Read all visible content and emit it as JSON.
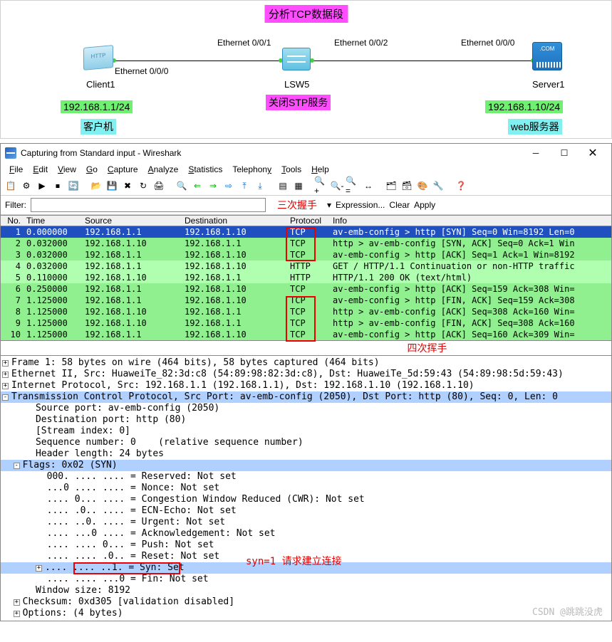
{
  "topology": {
    "title": "分析TCP数据段",
    "client": {
      "label": "Client1",
      "ip": "192.168.1.1/24",
      "role": "客户机",
      "eth": "Ethernet 0/0/0",
      "icon_text": "HTTP"
    },
    "switch": {
      "label": "LSW5",
      "note": "关闭STP服务",
      "eth_left": "Ethernet 0/0/1",
      "eth_right": "Ethernet 0/0/2"
    },
    "server": {
      "label": "Server1",
      "ip": "192.168.1.10/24",
      "role": "web服务器",
      "eth": "Ethernet 0/0/0",
      "icon_text": ".COM"
    }
  },
  "wireshark": {
    "title": "Capturing from Standard input - Wireshark",
    "menus": [
      "File",
      "Edit",
      "View",
      "Go",
      "Capture",
      "Analyze",
      "Statistics",
      "Telephony",
      "Tools",
      "Help"
    ],
    "filter_label": "Filter:",
    "filter_right": [
      "Expression...",
      "Clear",
      "Apply"
    ],
    "handshake3": "三次握手",
    "handshake4": "四次挥手",
    "columns": [
      "No.",
      "Time",
      "Source",
      "Destination",
      "Protocol",
      "Info"
    ],
    "packets": [
      {
        "no": 1,
        "time": "0.000000",
        "src": "192.168.1.1",
        "dst": "192.168.1.10",
        "proto": "TCP",
        "info": "av-emb-config > http [SYN] Seq=0 Win=8192 Len=0",
        "cls": "selected"
      },
      {
        "no": 2,
        "time": "0.032000",
        "src": "192.168.1.10",
        "dst": "192.168.1.1",
        "proto": "TCP",
        "info": "http > av-emb-config [SYN, ACK] Seq=0 Ack=1 Win",
        "cls": "tcp"
      },
      {
        "no": 3,
        "time": "0.032000",
        "src": "192.168.1.1",
        "dst": "192.168.1.10",
        "proto": "TCP",
        "info": "av-emb-config > http [ACK] Seq=1 Ack=1 Win=8192",
        "cls": "tcp"
      },
      {
        "no": 4,
        "time": "0.032000",
        "src": "192.168.1.1",
        "dst": "192.168.1.10",
        "proto": "HTTP",
        "info": "GET / HTTP/1.1 Continuation or non-HTTP traffic",
        "cls": "http"
      },
      {
        "no": 5,
        "time": "0.110000",
        "src": "192.168.1.10",
        "dst": "192.168.1.1",
        "proto": "HTTP",
        "info": "HTTP/1.1 200 OK  (text/html)",
        "cls": "http"
      },
      {
        "no": 6,
        "time": "0.250000",
        "src": "192.168.1.1",
        "dst": "192.168.1.10",
        "proto": "TCP",
        "info": "av-emb-config > http [ACK] Seq=159 Ack=308 Win=",
        "cls": "tcp"
      },
      {
        "no": 7,
        "time": "1.125000",
        "src": "192.168.1.1",
        "dst": "192.168.1.10",
        "proto": "TCP",
        "info": "av-emb-config > http [FIN, ACK] Seq=159 Ack=308",
        "cls": "tcp"
      },
      {
        "no": 8,
        "time": "1.125000",
        "src": "192.168.1.10",
        "dst": "192.168.1.1",
        "proto": "TCP",
        "info": "http > av-emb-config [ACK] Seq=308 Ack=160 Win=",
        "cls": "tcp"
      },
      {
        "no": 9,
        "time": "1.125000",
        "src": "192.168.1.10",
        "dst": "192.168.1.1",
        "proto": "TCP",
        "info": "http > av-emb-config [FIN, ACK] Seq=308 Ack=160",
        "cls": "tcp"
      },
      {
        "no": 10,
        "time": "1.125000",
        "src": "192.168.1.1",
        "dst": "192.168.1.10",
        "proto": "TCP",
        "info": "av-emb-config > http [ACK] Seq=160 Ack=309 Win=",
        "cls": "tcp"
      }
    ],
    "details": [
      {
        "t": "Frame 1: 58 bytes on wire (464 bits), 58 bytes captured (464 bits)",
        "i": 0,
        "tg": "+"
      },
      {
        "t": "Ethernet II, Src: HuaweiTe_82:3d:c8 (54:89:98:82:3d:c8), Dst: HuaweiTe_5d:59:43 (54:89:98:5d:59:43)",
        "i": 0,
        "tg": "+"
      },
      {
        "t": "Internet Protocol, Src: 192.168.1.1 (192.168.1.1), Dst: 192.168.1.10 (192.168.1.10)",
        "i": 0,
        "tg": "+"
      },
      {
        "t": "Transmission Control Protocol, Src Port: av-emb-config (2050), Dst Port: http (80), Seq: 0, Len: 0",
        "i": 0,
        "tg": "-",
        "hl": true
      },
      {
        "t": "Source port: av-emb-config (2050)",
        "i": 2
      },
      {
        "t": "Destination port: http (80)",
        "i": 2
      },
      {
        "t": "[Stream index: 0]",
        "i": 2
      },
      {
        "t": "Sequence number: 0    (relative sequence number)",
        "i": 2
      },
      {
        "t": "Header length: 24 bytes",
        "i": 2
      },
      {
        "t": "Flags: 0x02 (SYN)",
        "i": 1,
        "tg": "-",
        "hl": true
      },
      {
        "t": "000. .... .... = Reserved: Not set",
        "i": 3
      },
      {
        "t": "...0 .... .... = Nonce: Not set",
        "i": 3
      },
      {
        "t": ".... 0... .... = Congestion Window Reduced (CWR): Not set",
        "i": 3
      },
      {
        "t": ".... .0.. .... = ECN-Echo: Not set",
        "i": 3
      },
      {
        "t": ".... ..0. .... = Urgent: Not set",
        "i": 3
      },
      {
        "t": ".... ...0 .... = Acknowledgement: Not set",
        "i": 3
      },
      {
        "t": ".... .... 0... = Push: Not set",
        "i": 3
      },
      {
        "t": ".... .... .0.. = Reset: Not set",
        "i": 3
      },
      {
        "t": ".... .... ..1. = Syn: Set",
        "i": 3,
        "hl": true,
        "syn": true,
        "tg": "+"
      },
      {
        "t": ".... .... ...0 = Fin: Not set",
        "i": 3
      },
      {
        "t": "Window size: 8192",
        "i": 2
      },
      {
        "t": "Checksum: 0xd305 [validation disabled]",
        "i": 1,
        "tg": "+"
      },
      {
        "t": "Options: (4 bytes)",
        "i": 1,
        "tg": "+"
      }
    ],
    "syn_note": "syn=1  请求建立连接",
    "watermark": "CSDN @跳跳没虎"
  },
  "colors": {
    "selected_bg": "#2050c0",
    "tcp_bg": "#90f090",
    "http_bg": "#b0ffb0",
    "highlight_bg": "#b0d0ff",
    "red": "#e00000",
    "magenta": "#ff4dff",
    "green_label": "#70f070",
    "cyan_label": "#80f0f0"
  }
}
